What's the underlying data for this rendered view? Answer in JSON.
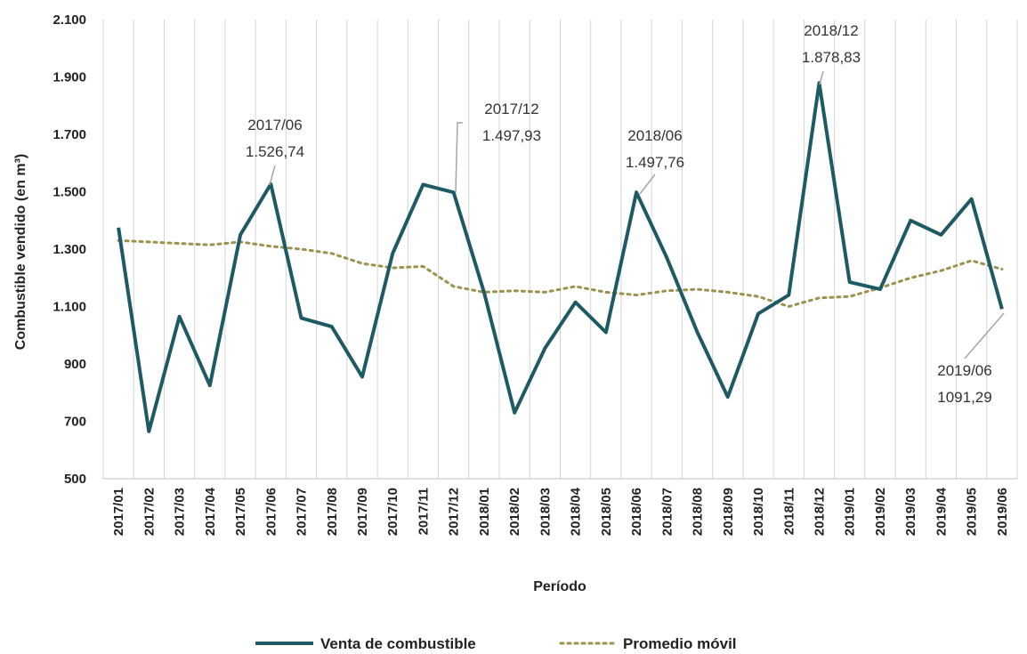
{
  "chart_data": {
    "type": "line",
    "title": "",
    "xlabel": "Período",
    "ylabel": "Combustible vendido (en m³)",
    "ylim": [
      500,
      2100
    ],
    "yticks": [
      500,
      700,
      900,
      1100,
      1300,
      1500,
      1700,
      1900,
      2100
    ],
    "ytick_labels": [
      "500",
      "700",
      "900",
      "1.100",
      "1.300",
      "1.500",
      "1.700",
      "1.900",
      "2.100"
    ],
    "grid": "vertical",
    "legend_position": "bottom",
    "categories": [
      "2017/01",
      "2017/02",
      "2017/03",
      "2017/04",
      "2017/05",
      "2017/06",
      "2017/07",
      "2017/08",
      "2017/09",
      "2017/10",
      "2017/11",
      "2017/12",
      "2018/01",
      "2018/02",
      "2018/03",
      "2018/04",
      "2018/05",
      "2018/06",
      "2018/07",
      "2018/08",
      "2018/09",
      "2018/10",
      "2018/11",
      "2018/12",
      "2019/01",
      "2019/02",
      "2019/03",
      "2019/04",
      "2019/05",
      "2019/06"
    ],
    "series": [
      {
        "name": "Venta de combustible",
        "color": "#1d5a63",
        "style": "solid",
        "values": [
          1375,
          665,
          1065,
          825,
          1350,
          1526.74,
          1060,
          1030,
          855,
          1285,
          1525,
          1497.93,
          1150,
          730,
          955,
          1115,
          1010,
          1497.76,
          1270,
          1010,
          785,
          1075,
          1140,
          1878.83,
          1185,
          1160,
          1400,
          1350,
          1475,
          1091.29
        ]
      },
      {
        "name": "Promedio móvil",
        "color": "#9c9250",
        "style": "dotted",
        "values": [
          1330,
          1325,
          1320,
          1315,
          1325,
          1310,
          1300,
          1285,
          1250,
          1235,
          1240,
          1170,
          1150,
          1155,
          1150,
          1170,
          1150,
          1140,
          1155,
          1160,
          1150,
          1135,
          1100,
          1130,
          1135,
          1165,
          1200,
          1225,
          1260,
          1230
        ]
      }
    ],
    "annotations": [
      {
        "index": 5,
        "series": 0,
        "line1": "2017/06",
        "line2": "1.526,74"
      },
      {
        "index": 11,
        "series": 0,
        "line1": "2017/12",
        "line2": "1.497,93"
      },
      {
        "index": 17,
        "series": 0,
        "line1": "2018/06",
        "line2": "1.497,76"
      },
      {
        "index": 23,
        "series": 0,
        "line1": "2018/12",
        "line2": "1.878,83"
      },
      {
        "index": 29,
        "series": 0,
        "line1": "2019/06",
        "line2": "1091,29"
      }
    ]
  }
}
